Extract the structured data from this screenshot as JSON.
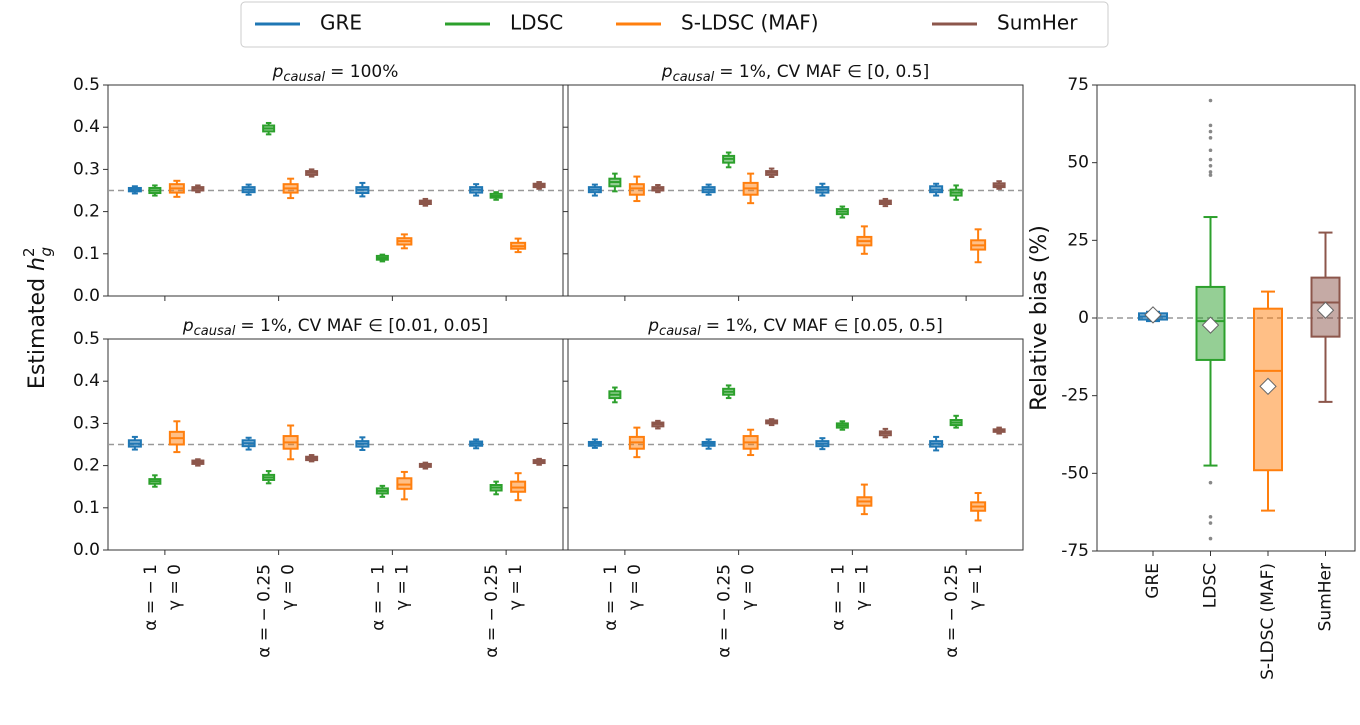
{
  "chart_data": [
    {
      "type": "box-grid",
      "series": [
        {
          "name": "GRE",
          "color": "#1f77b4"
        },
        {
          "name": "LDSC",
          "color": "#2ca02c"
        },
        {
          "name": "S-LDSC (MAF)",
          "color": "#ff7f0e"
        },
        {
          "name": "SumHer",
          "color": "#8c564b"
        }
      ],
      "legend": "top",
      "ylabel": {
        "text": "Estimated",
        "symbol": "h",
        "superscript": "2",
        "subscript": "g"
      },
      "ylim": [
        0,
        0.5
      ],
      "yticks": [
        {
          "value": 0,
          "label": "0.0"
        },
        0.1,
        0.2,
        0.3,
        0.4,
        0.5
      ],
      "hline": 0.25,
      "categories": [
        [
          "α = − 1",
          "γ = 0"
        ],
        [
          "α = − 0.25",
          "γ = 0"
        ],
        [
          "α = − 1",
          "γ = 1"
        ],
        [
          "α = − 0.25",
          "γ = 1"
        ]
      ],
      "panels": [
        {
          "title": {
            "symbol": "p",
            "subscript": "causal",
            "text": "= 100%"
          },
          "boxes": [
            [
              {
                "low": 0.243,
                "q1": 0.248,
                "median": 0.252,
                "q3": 0.256,
                "high": 0.26
              },
              {
                "low": 0.238,
                "q1": 0.244,
                "median": 0.25,
                "q3": 0.256,
                "high": 0.262
              },
              {
                "low": 0.235,
                "q1": 0.245,
                "median": 0.255,
                "q3": 0.265,
                "high": 0.273
              },
              {
                "low": 0.246,
                "q1": 0.25,
                "median": 0.255,
                "q3": 0.258,
                "high": 0.262
              }
            ],
            [
              {
                "low": 0.24,
                "q1": 0.246,
                "median": 0.252,
                "q3": 0.258,
                "high": 0.264
              },
              {
                "low": 0.383,
                "q1": 0.39,
                "median": 0.397,
                "q3": 0.404,
                "high": 0.41
              },
              {
                "low": 0.232,
                "q1": 0.245,
                "median": 0.255,
                "q3": 0.265,
                "high": 0.278
              },
              {
                "low": 0.283,
                "q1": 0.287,
                "median": 0.292,
                "q3": 0.296,
                "high": 0.3
              }
            ],
            [
              {
                "low": 0.236,
                "q1": 0.244,
                "median": 0.252,
                "q3": 0.258,
                "high": 0.268
              },
              {
                "low": 0.082,
                "q1": 0.086,
                "median": 0.09,
                "q3": 0.095,
                "high": 0.098
              },
              {
                "low": 0.113,
                "q1": 0.122,
                "median": 0.13,
                "q3": 0.137,
                "high": 0.146
              },
              {
                "low": 0.214,
                "q1": 0.218,
                "median": 0.222,
                "q3": 0.226,
                "high": 0.23
              }
            ],
            [
              {
                "low": 0.238,
                "q1": 0.245,
                "median": 0.252,
                "q3": 0.258,
                "high": 0.265
              },
              {
                "low": 0.228,
                "q1": 0.233,
                "median": 0.237,
                "q3": 0.242,
                "high": 0.246
              },
              {
                "low": 0.104,
                "q1": 0.112,
                "median": 0.118,
                "q3": 0.126,
                "high": 0.136
              },
              {
                "low": 0.254,
                "q1": 0.258,
                "median": 0.262,
                "q3": 0.266,
                "high": 0.27
              }
            ]
          ]
        },
        {
          "title": {
            "symbol": "p",
            "subscript": "causal",
            "text": "= 1%, CV MAF ∈ [0, 0.5]"
          },
          "boxes": [
            [
              {
                "low": 0.238,
                "q1": 0.246,
                "median": 0.252,
                "q3": 0.258,
                "high": 0.264
              },
              {
                "low": 0.248,
                "q1": 0.26,
                "median": 0.27,
                "q3": 0.278,
                "high": 0.29
              },
              {
                "low": 0.225,
                "q1": 0.24,
                "median": 0.255,
                "q3": 0.265,
                "high": 0.283
              },
              {
                "low": 0.246,
                "q1": 0.25,
                "median": 0.255,
                "q3": 0.258,
                "high": 0.263
              }
            ],
            [
              {
                "low": 0.24,
                "q1": 0.246,
                "median": 0.252,
                "q3": 0.258,
                "high": 0.264
              },
              {
                "low": 0.305,
                "q1": 0.316,
                "median": 0.325,
                "q3": 0.332,
                "high": 0.34
              },
              {
                "low": 0.22,
                "q1": 0.24,
                "median": 0.255,
                "q3": 0.268,
                "high": 0.29
              },
              {
                "low": 0.282,
                "q1": 0.287,
                "median": 0.292,
                "q3": 0.296,
                "high": 0.302
              }
            ],
            [
              {
                "low": 0.238,
                "q1": 0.245,
                "median": 0.252,
                "q3": 0.258,
                "high": 0.266
              },
              {
                "low": 0.186,
                "q1": 0.194,
                "median": 0.2,
                "q3": 0.206,
                "high": 0.212
              },
              {
                "low": 0.1,
                "q1": 0.12,
                "median": 0.13,
                "q3": 0.14,
                "high": 0.165
              },
              {
                "low": 0.213,
                "q1": 0.218,
                "median": 0.222,
                "q3": 0.226,
                "high": 0.23
              }
            ],
            [
              {
                "low": 0.238,
                "q1": 0.246,
                "median": 0.252,
                "q3": 0.26,
                "high": 0.266
              },
              {
                "low": 0.228,
                "q1": 0.238,
                "median": 0.245,
                "q3": 0.252,
                "high": 0.262
              },
              {
                "low": 0.08,
                "q1": 0.11,
                "median": 0.12,
                "q3": 0.132,
                "high": 0.158
              },
              {
                "low": 0.254,
                "q1": 0.258,
                "median": 0.262,
                "q3": 0.267,
                "high": 0.272
              }
            ]
          ]
        },
        {
          "title": {
            "symbol": "p",
            "subscript": "causal",
            "text": "= 1%, CV MAF ∈ [0.01, 0.05]"
          },
          "boxes": [
            [
              {
                "low": 0.238,
                "q1": 0.245,
                "median": 0.252,
                "q3": 0.26,
                "high": 0.268
              },
              {
                "low": 0.15,
                "q1": 0.157,
                "median": 0.163,
                "q3": 0.168,
                "high": 0.177
              },
              {
                "low": 0.232,
                "q1": 0.25,
                "median": 0.265,
                "q3": 0.28,
                "high": 0.305
              },
              {
                "low": 0.2,
                "q1": 0.204,
                "median": 0.208,
                "q3": 0.212,
                "high": 0.215
              }
            ],
            [
              {
                "low": 0.238,
                "q1": 0.246,
                "median": 0.253,
                "q3": 0.26,
                "high": 0.266
              },
              {
                "low": 0.158,
                "q1": 0.166,
                "median": 0.172,
                "q3": 0.178,
                "high": 0.187
              },
              {
                "low": 0.215,
                "q1": 0.24,
                "median": 0.255,
                "q3": 0.27,
                "high": 0.295
              },
              {
                "low": 0.21,
                "q1": 0.213,
                "median": 0.217,
                "q3": 0.221,
                "high": 0.225
              }
            ],
            [
              {
                "low": 0.237,
                "q1": 0.245,
                "median": 0.252,
                "q3": 0.258,
                "high": 0.267
              },
              {
                "low": 0.126,
                "q1": 0.134,
                "median": 0.14,
                "q3": 0.146,
                "high": 0.152
              },
              {
                "low": 0.12,
                "q1": 0.145,
                "median": 0.155,
                "q3": 0.17,
                "high": 0.185
              },
              {
                "low": 0.193,
                "q1": 0.197,
                "median": 0.2,
                "q3": 0.204,
                "high": 0.207
              }
            ],
            [
              {
                "low": 0.241,
                "q1": 0.247,
                "median": 0.252,
                "q3": 0.257,
                "high": 0.262
              },
              {
                "low": 0.132,
                "q1": 0.141,
                "median": 0.148,
                "q3": 0.154,
                "high": 0.162
              },
              {
                "low": 0.118,
                "q1": 0.138,
                "median": 0.148,
                "q3": 0.162,
                "high": 0.182
              },
              {
                "low": 0.202,
                "q1": 0.206,
                "median": 0.21,
                "q3": 0.213,
                "high": 0.216
              }
            ]
          ]
        },
        {
          "title": {
            "symbol": "p",
            "subscript": "causal",
            "text": "= 1%, CV MAF ∈ [0.05, 0.5]"
          },
          "boxes": [
            [
              {
                "low": 0.242,
                "q1": 0.247,
                "median": 0.252,
                "q3": 0.256,
                "high": 0.262
              },
              {
                "low": 0.35,
                "q1": 0.36,
                "median": 0.368,
                "q3": 0.376,
                "high": 0.385
              },
              {
                "low": 0.22,
                "q1": 0.24,
                "median": 0.255,
                "q3": 0.268,
                "high": 0.29
              },
              {
                "low": 0.288,
                "q1": 0.293,
                "median": 0.298,
                "q3": 0.302,
                "high": 0.306
              }
            ],
            [
              {
                "low": 0.24,
                "q1": 0.247,
                "median": 0.252,
                "q3": 0.256,
                "high": 0.262
              },
              {
                "low": 0.36,
                "q1": 0.368,
                "median": 0.375,
                "q3": 0.382,
                "high": 0.39
              },
              {
                "low": 0.225,
                "q1": 0.24,
                "median": 0.255,
                "q3": 0.27,
                "high": 0.285
              },
              {
                "low": 0.296,
                "q1": 0.3,
                "median": 0.303,
                "q3": 0.307,
                "high": 0.31
              }
            ],
            [
              {
                "low": 0.239,
                "q1": 0.246,
                "median": 0.252,
                "q3": 0.258,
                "high": 0.265
              },
              {
                "low": 0.285,
                "q1": 0.29,
                "median": 0.295,
                "q3": 0.3,
                "high": 0.305
              },
              {
                "low": 0.085,
                "q1": 0.105,
                "median": 0.115,
                "q3": 0.125,
                "high": 0.155
              },
              {
                "low": 0.267,
                "q1": 0.272,
                "median": 0.277,
                "q3": 0.281,
                "high": 0.287
              }
            ],
            [
              {
                "low": 0.236,
                "q1": 0.245,
                "median": 0.252,
                "q3": 0.258,
                "high": 0.268
              },
              {
                "low": 0.29,
                "q1": 0.296,
                "median": 0.302,
                "q3": 0.308,
                "high": 0.318
              },
              {
                "low": 0.07,
                "q1": 0.093,
                "median": 0.103,
                "q3": 0.113,
                "high": 0.135
              },
              {
                "low": 0.276,
                "q1": 0.28,
                "median": 0.283,
                "q3": 0.286,
                "high": 0.29
              }
            ]
          ]
        }
      ]
    },
    {
      "type": "box",
      "ylabel": "Relative bias (%)",
      "ylim": [
        -75,
        75
      ],
      "yticks": [
        -75,
        -50,
        -25,
        0,
        25,
        50,
        75
      ],
      "hline": 0,
      "categories": [
        "GRE",
        "LDSC",
        "S-LDSC (MAF)",
        "SumHer"
      ],
      "boxes": [
        {
          "color": "#1f77b4",
          "low": -1,
          "q1": -0.5,
          "median": 0.5,
          "q3": 1.5,
          "high": 2,
          "mean": 1,
          "outliers": []
        },
        {
          "color": "#2ca02c",
          "low": -47.5,
          "q1": -13.5,
          "median": -1,
          "q3": 10,
          "high": 32.5,
          "mean": -2.3,
          "outliers": [
            70,
            62,
            60,
            58,
            54,
            51,
            49,
            47,
            46,
            -53,
            -64,
            -66,
            -71
          ]
        },
        {
          "color": "#ff7f0e",
          "low": -62,
          "q1": -49,
          "median": -17,
          "q3": 3,
          "high": 8.5,
          "mean": -22,
          "outliers": []
        },
        {
          "color": "#8c564b",
          "low": -27,
          "q1": -6,
          "median": 5,
          "q3": 13,
          "high": 27.5,
          "mean": 2.5,
          "outliers": []
        }
      ]
    }
  ]
}
